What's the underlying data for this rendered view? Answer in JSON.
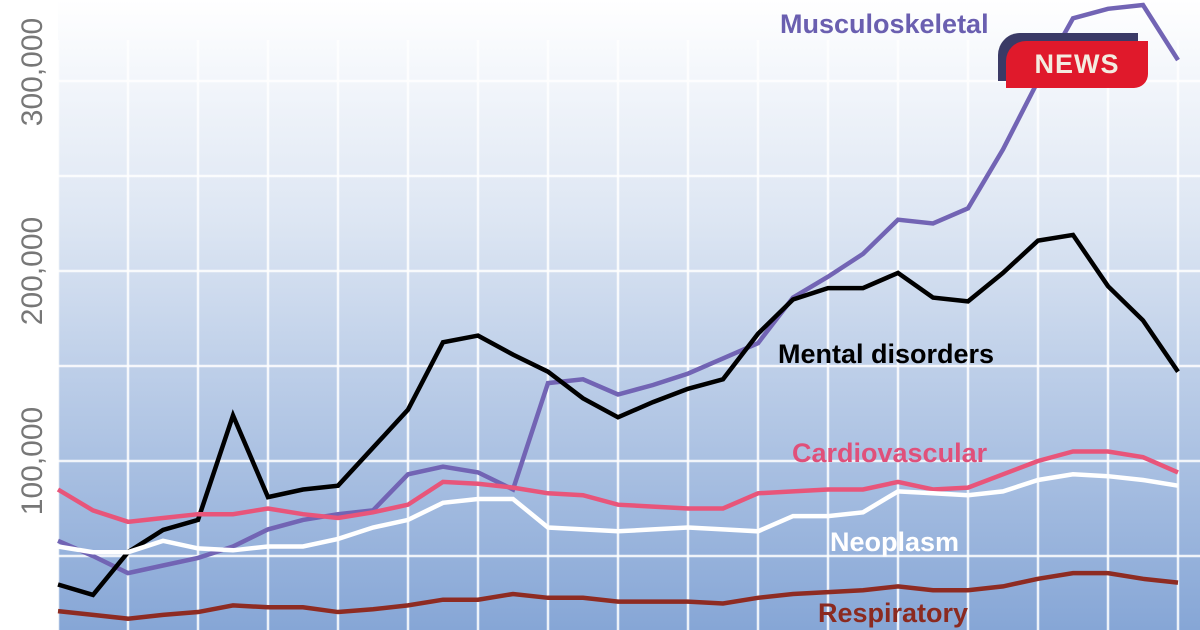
{
  "chart_data": {
    "type": "line",
    "title": "",
    "xlabel": "",
    "ylabel": "",
    "ylim": [
      0,
      330000
    ],
    "yticks": [
      100000,
      200000,
      300000
    ],
    "ytick_labels": [
      "100,000",
      "200,000",
      "300,000"
    ],
    "grid": true,
    "x": [
      0,
      1,
      2,
      3,
      4,
      5,
      6,
      7,
      8,
      9,
      10,
      11,
      12,
      13,
      14,
      15,
      16,
      17,
      18,
      19,
      20,
      21,
      22,
      23,
      24,
      25,
      26,
      27,
      28,
      29,
      30,
      31,
      32
    ],
    "series": [
      {
        "name": "Musculoskeletal",
        "color": "#7264b4",
        "label_color": "#6a5fb0",
        "values": [
          58000,
          50000,
          41000,
          45000,
          49000,
          55000,
          64000,
          69000,
          72000,
          74000,
          93000,
          97000,
          94000,
          85000,
          141000,
          143000,
          135000,
          140000,
          146000,
          154000,
          162000,
          186000,
          197000,
          209000,
          227000,
          225000,
          233000,
          264000,
          300000,
          333000,
          338000,
          340000,
          311000
        ]
      },
      {
        "name": "Mental disorders",
        "color": "#000000",
        "label_color": "#000000",
        "values": [
          35000,
          29500,
          52000,
          63700,
          69000,
          124000,
          81000,
          85000,
          87000,
          107000,
          127000,
          162500,
          166000,
          156000,
          147000,
          133000,
          123000,
          131000,
          138000,
          143000,
          167000,
          185000,
          191000,
          191000,
          199000,
          186000,
          184000,
          199000,
          216000,
          219000,
          192000,
          174000,
          147000
        ]
      },
      {
        "name": "Cardiovascular",
        "color": "#e8557a",
        "label_color": "#e0507a",
        "values": [
          85000,
          74000,
          68000,
          70000,
          72000,
          72000,
          75000,
          72000,
          70000,
          73000,
          77000,
          89000,
          88000,
          86000,
          83000,
          82000,
          77000,
          76000,
          75000,
          75000,
          83000,
          84000,
          85000,
          85000,
          89000,
          85000,
          86000,
          93000,
          100000,
          105000,
          105000,
          102000,
          94000
        ]
      },
      {
        "name": "Neoplasm",
        "color": "#ffffff",
        "label_color": "#ffffff",
        "values": [
          55000,
          52000,
          52000,
          58000,
          54000,
          53000,
          55000,
          55000,
          59000,
          65000,
          69000,
          78000,
          80000,
          80000,
          65000,
          64000,
          63000,
          64000,
          65000,
          64000,
          63000,
          71000,
          71000,
          73000,
          84000,
          83000,
          82000,
          84000,
          90000,
          93000,
          92000,
          90000,
          87000
        ]
      },
      {
        "name": "Respiratory",
        "color": "#8e2b22",
        "label_color": "#8b2a20",
        "values": [
          21000,
          19000,
          17000,
          19000,
          20500,
          24000,
          23000,
          23000,
          20500,
          22000,
          24000,
          27000,
          27000,
          30000,
          28000,
          28000,
          26000,
          26000,
          26000,
          25000,
          28000,
          30000,
          31000,
          32000,
          34000,
          32000,
          32000,
          34000,
          38000,
          41000,
          41000,
          38000,
          36000
        ]
      }
    ]
  },
  "logo": {
    "text": "NEWS"
  }
}
